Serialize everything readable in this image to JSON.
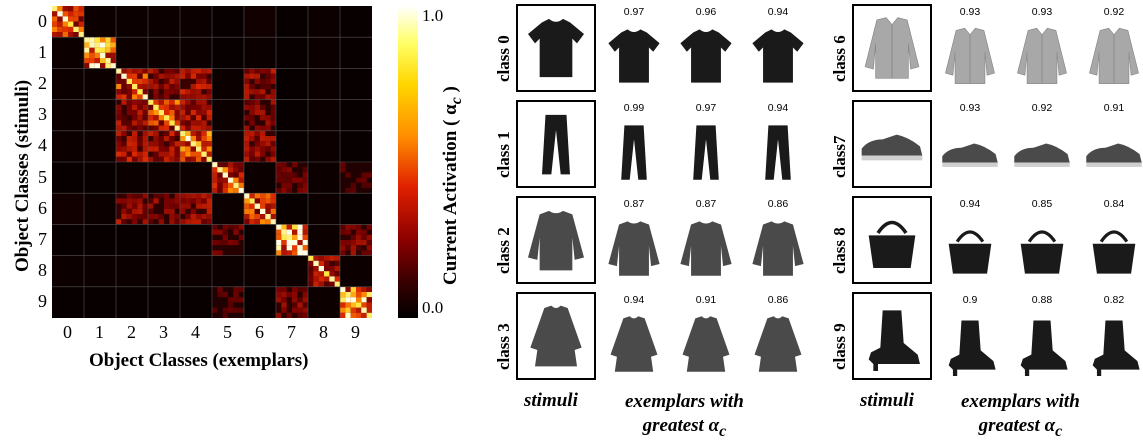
{
  "heatmap": {
    "y_ticks": [
      "0",
      "1",
      "2",
      "3",
      "4",
      "5",
      "6",
      "7",
      "8",
      "9"
    ],
    "x_ticks": [
      "0",
      "1",
      "2",
      "3",
      "4",
      "5",
      "6",
      "7",
      "8",
      "9"
    ],
    "y_title": "Object Classes (stimuli)",
    "x_title": "Object Classes (exemplars)",
    "colorbar_title": "Current Activation ( α",
    "colorbar_sub": "c",
    "colorbar_title_end": " )",
    "cb_max": "1.0",
    "cb_min": "0.0"
  },
  "chart_data": {
    "type": "heatmap",
    "categories": [
      "0",
      "1",
      "2",
      "3",
      "4",
      "5",
      "6",
      "7",
      "8",
      "9"
    ],
    "block_intensity": [
      [
        0.55,
        0.05,
        0.05,
        0.05,
        0.05,
        0.02,
        0.1,
        0.02,
        0.05,
        0.02
      ],
      [
        0.05,
        0.8,
        0.05,
        0.05,
        0.05,
        0.02,
        0.05,
        0.02,
        0.05,
        0.02
      ],
      [
        0.05,
        0.05,
        0.55,
        0.35,
        0.4,
        0.05,
        0.35,
        0.02,
        0.05,
        0.02
      ],
      [
        0.05,
        0.05,
        0.35,
        0.55,
        0.4,
        0.05,
        0.3,
        0.02,
        0.05,
        0.02
      ],
      [
        0.05,
        0.05,
        0.4,
        0.4,
        0.6,
        0.05,
        0.35,
        0.02,
        0.05,
        0.02
      ],
      [
        0.02,
        0.02,
        0.05,
        0.05,
        0.05,
        0.55,
        0.05,
        0.25,
        0.05,
        0.2
      ],
      [
        0.1,
        0.05,
        0.35,
        0.3,
        0.35,
        0.05,
        0.55,
        0.02,
        0.05,
        0.02
      ],
      [
        0.02,
        0.02,
        0.02,
        0.02,
        0.02,
        0.25,
        0.02,
        0.95,
        0.05,
        0.3
      ],
      [
        0.05,
        0.05,
        0.05,
        0.05,
        0.05,
        0.05,
        0.05,
        0.05,
        0.4,
        0.05
      ],
      [
        0.02,
        0.02,
        0.02,
        0.02,
        0.02,
        0.2,
        0.02,
        0.3,
        0.05,
        0.75
      ]
    ],
    "zlim": [
      0.0,
      1.0
    ]
  },
  "left_grid": {
    "rows": [
      {
        "label": "class 0",
        "scores": [
          "0.97",
          "0.96",
          "0.94"
        ]
      },
      {
        "label": "class 1",
        "scores": [
          "0.99",
          "0.97",
          "0.94"
        ]
      },
      {
        "label": "class 2",
        "scores": [
          "0.87",
          "0.87",
          "0.86"
        ]
      },
      {
        "label": "class 3",
        "scores": [
          "0.94",
          "0.91",
          "0.86"
        ]
      }
    ],
    "footer_stimuli": "stimuli",
    "footer_exemplars_line1": "exemplars with",
    "footer_exemplars_line2": "greatest α",
    "footer_sub": "c"
  },
  "right_grid": {
    "rows": [
      {
        "label": "class 6",
        "scores": [
          "0.93",
          "0.93",
          "0.92"
        ]
      },
      {
        "label": "class7",
        "scores": [
          "0.93",
          "0.92",
          "0.91"
        ]
      },
      {
        "label": "class 8",
        "scores": [
          "0.94",
          "0.85",
          "0.84"
        ]
      },
      {
        "label": "class 9",
        "scores": [
          "0.9",
          "0.88",
          "0.82"
        ]
      }
    ],
    "footer_stimuli": "stimuli",
    "footer_exemplars_line1": "exemplars with",
    "footer_exemplars_line2": "greatest α",
    "footer_sub": "c"
  },
  "items": [
    "tshirt",
    "trouser",
    "pullover",
    "dress",
    "shirt",
    "sneaker",
    "bag",
    "ankle-boot"
  ]
}
